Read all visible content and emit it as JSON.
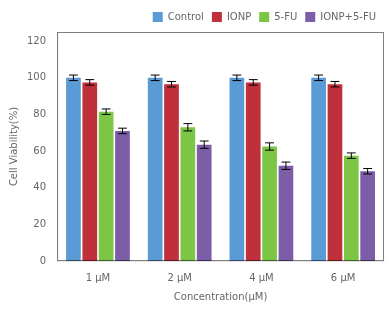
{
  "chart_data": {
    "type": "bar",
    "categories": [
      "1 μM",
      "2 μM",
      "4 μM",
      "6 μM"
    ],
    "series": [
      {
        "name": "Control",
        "color": "#5B9BD5",
        "values": [
          100,
          100,
          100,
          100
        ],
        "errors": [
          1.5,
          1.5,
          1.5,
          1.5
        ]
      },
      {
        "name": "IONP",
        "color": "#C0303A",
        "values": [
          97.5,
          96.5,
          97.5,
          96.5
        ],
        "errors": [
          1.5,
          1.5,
          1.5,
          1.5
        ]
      },
      {
        "name": "5-FU",
        "color": "#7DC544",
        "values": [
          81.5,
          73.0,
          62.5,
          57.5
        ],
        "errors": [
          1.5,
          2.0,
          2.0,
          1.5
        ]
      },
      {
        "name": "IONP+5-FU",
        "color": "#7B5EA7",
        "values": [
          71.0,
          63.5,
          52.0,
          49.0
        ],
        "errors": [
          1.5,
          2.0,
          2.0,
          1.5
        ]
      }
    ],
    "xlabel": "Concentration(μM)",
    "ylabel": "Cell Viability(%)",
    "ylim": [
      0,
      125
    ],
    "yticks": [
      0,
      20,
      40,
      60,
      80,
      100,
      120
    ],
    "grid": false,
    "legend": "upper right"
  }
}
